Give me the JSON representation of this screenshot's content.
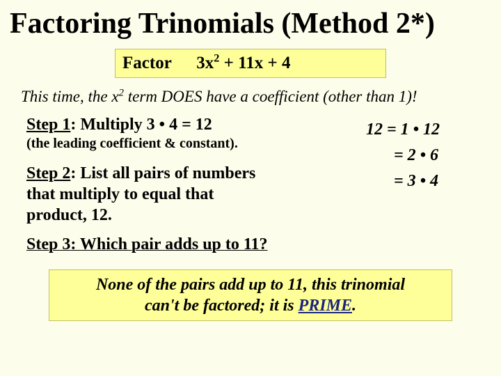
{
  "title_part1": "Factoring Trinomials (Method 2*)",
  "factor_box": {
    "label": "Factor",
    "expr_pre": "3x",
    "expr_exp": "2",
    "expr_post": " + 11x + 4"
  },
  "note": {
    "pre": "This time, the x",
    "exp": "2",
    "post": " term DOES have a coefficient (other than 1)!"
  },
  "step1": {
    "label": "Step 1",
    "text": ":   Multiply 3 • 4 = 12",
    "sub": "(the leading coefficient & constant)."
  },
  "step2": {
    "label": "Step 2",
    "text": ":   List all pairs of numbers that multiply to equal that product, 12."
  },
  "step3": {
    "label": "Step 3",
    "text": ":  Which pair adds up to 11?"
  },
  "pairs": {
    "line1": "12 = 1 • 12",
    "line2": "= 2 • 6",
    "line3": "= 3 • 4"
  },
  "conclusion": {
    "line1": "None of the pairs add up to 11, this trinomial",
    "line2_pre": "can't be factored; it is ",
    "prime": "PRIME",
    "line2_post": "."
  },
  "colors": {
    "background": "#fdfdeb",
    "highlight_bg": "#ffff99",
    "highlight_border": "#c0c060",
    "prime_color": "#1a237e",
    "text": "#000000"
  },
  "typography": {
    "family": "Times New Roman",
    "title_size_pt": 32,
    "body_size_pt": 18,
    "sub_size_pt": 15
  }
}
